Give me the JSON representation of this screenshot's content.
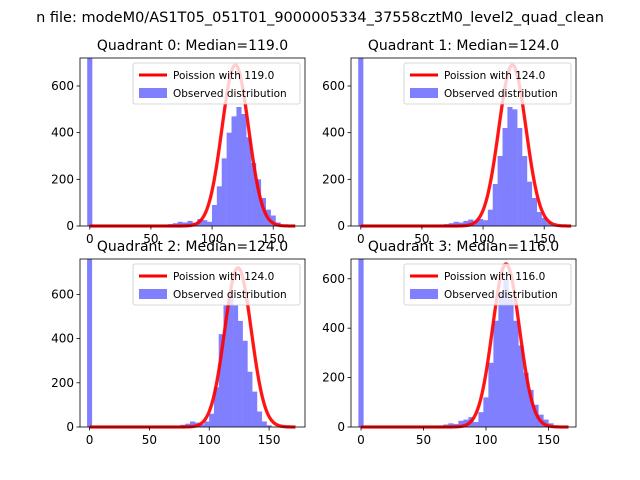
{
  "figure": {
    "suptitle": "n file: modeM0/AS1T05_051T01_9000005334_37558cztM0_level2_quad_clean"
  },
  "colors": {
    "poisson": "#ff0000",
    "observed": "#8080ff"
  },
  "chart_data": [
    {
      "type": "bar",
      "title": "Quadrant 0: Median=119.0",
      "xlim": [
        -8,
        176
      ],
      "ylim": [
        0,
        720
      ],
      "xticks": [
        0,
        50,
        100,
        150
      ],
      "yticks": [
        0,
        200,
        400,
        600
      ],
      "median": 119.0,
      "legend": [
        "Poission with 119.0",
        "Observed distribution"
      ],
      "legend_position": "upper-right",
      "series": [
        {
          "name": "Observed distribution",
          "bin_width": 4.2,
          "x": [
            0,
            58,
            62,
            66,
            70,
            74,
            78,
            82,
            86,
            90,
            94,
            98,
            102,
            106,
            110,
            114,
            118,
            122,
            126,
            130,
            134,
            138,
            142,
            146,
            150,
            154
          ],
          "values": [
            720,
            3,
            5,
            8,
            12,
            18,
            15,
            22,
            14,
            30,
            25,
            18,
            90,
            170,
            290,
            400,
            470,
            510,
            480,
            380,
            270,
            200,
            120,
            70,
            45,
            15
          ]
        },
        {
          "name": "Poission with 119.0",
          "type": "line",
          "mean": 119.0,
          "x_range": [
            0,
            168
          ],
          "peak": 690
        }
      ]
    },
    {
      "type": "bar",
      "title": "Quadrant 1: Median=124.0",
      "xlim": [
        -8,
        176
      ],
      "ylim": [
        0,
        720
      ],
      "xticks": [
        0,
        50,
        100,
        150
      ],
      "yticks": [
        0,
        200,
        400,
        600
      ],
      "median": 124.0,
      "legend": [
        "Poission with 124.0",
        "Observed distribution"
      ],
      "legend_position": "upper-right",
      "series": [
        {
          "name": "Observed distribution",
          "bin_width": 4.2,
          "x": [
            0,
            62,
            66,
            70,
            74,
            78,
            82,
            86,
            90,
            94,
            98,
            102,
            106,
            110,
            114,
            118,
            122,
            126,
            130,
            134,
            138,
            142,
            146,
            150,
            154,
            158
          ],
          "values": [
            720,
            3,
            5,
            8,
            12,
            18,
            15,
            22,
            28,
            20,
            30,
            25,
            70,
            180,
            300,
            420,
            510,
            500,
            420,
            300,
            190,
            120,
            60,
            35,
            15,
            5
          ]
        },
        {
          "name": "Poission with 124.0",
          "type": "line",
          "mean": 124.0,
          "x_range": [
            0,
            172
          ],
          "peak": 690
        }
      ]
    },
    {
      "type": "bar",
      "title": "Quadrant 2: Median=124.0",
      "xlim": [
        -8,
        180
      ],
      "ylim": [
        0,
        760
      ],
      "xticks": [
        0,
        50,
        100,
        150
      ],
      "yticks": [
        0,
        200,
        400,
        600
      ],
      "median": 124.0,
      "legend": [
        "Poission with 124.0",
        "Observed distribution"
      ],
      "legend_position": "upper-right",
      "series": [
        {
          "name": "Observed distribution",
          "bin_width": 4.2,
          "x": [
            0,
            78,
            82,
            86,
            90,
            94,
            98,
            102,
            106,
            110,
            114,
            118,
            122,
            126,
            130,
            134,
            138,
            142,
            146,
            150
          ],
          "values": [
            760,
            10,
            15,
            25,
            20,
            12,
            25,
            60,
            180,
            420,
            550,
            600,
            550,
            480,
            390,
            250,
            160,
            70,
            25,
            8
          ]
        },
        {
          "name": "Poission with 124.0",
          "type": "line",
          "mean": 124.0,
          "x_range": [
            0,
            172
          ],
          "peak": 720
        }
      ]
    },
    {
      "type": "bar",
      "title": "Quadrant 3: Median=116.0",
      "xlim": [
        -8,
        172
      ],
      "ylim": [
        0,
        680
      ],
      "xticks": [
        0,
        50,
        100,
        150
      ],
      "yticks": [
        0,
        200,
        400,
        600
      ],
      "median": 116.0,
      "legend": [
        "Poission with 116.0",
        "Observed distribution"
      ],
      "legend_position": "upper-right",
      "series": [
        {
          "name": "Observed distribution",
          "bin_width": 4.2,
          "x": [
            0,
            60,
            64,
            68,
            72,
            76,
            80,
            84,
            88,
            92,
            96,
            100,
            104,
            108,
            112,
            116,
            120,
            124,
            128,
            132,
            136,
            140,
            144,
            148,
            152,
            156
          ],
          "values": [
            680,
            3,
            6,
            10,
            15,
            12,
            25,
            30,
            40,
            20,
            60,
            120,
            260,
            430,
            540,
            600,
            520,
            430,
            330,
            220,
            150,
            90,
            50,
            30,
            15,
            5
          ]
        },
        {
          "name": "Poission with 116.0",
          "type": "line",
          "mean": 116.0,
          "x_range": [
            0,
            166
          ],
          "peak": 660
        }
      ]
    }
  ]
}
